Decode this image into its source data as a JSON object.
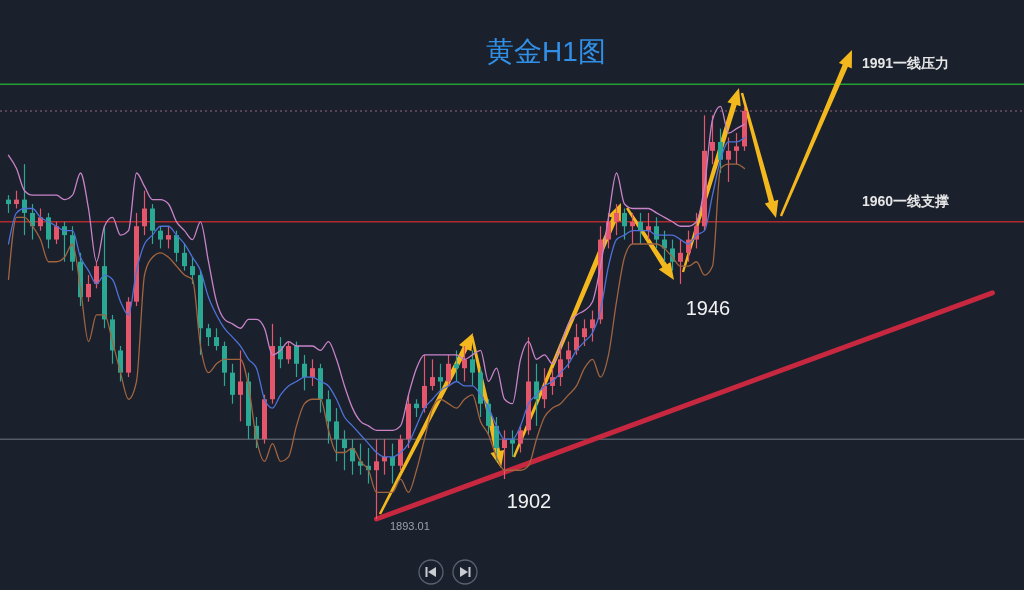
{
  "chart_data": {
    "type": "candlestick",
    "title": "黄金H1图",
    "categories": [
      null,
      null,
      null,
      null,
      null,
      null,
      null,
      null,
      null,
      null,
      null,
      null,
      null,
      null,
      null,
      null,
      null,
      null,
      null,
      null,
      null,
      null,
      null,
      null,
      null,
      null,
      null,
      null,
      null,
      null,
      null,
      null,
      null,
      null,
      null,
      null,
      null,
      null,
      null,
      null,
      null,
      null,
      null,
      null,
      null,
      null,
      null,
      null,
      null,
      null,
      null,
      null,
      null,
      null,
      null,
      null,
      null,
      null,
      null,
      null,
      null,
      null,
      null,
      null,
      null,
      null,
      null,
      null,
      null,
      null,
      null,
      null,
      null,
      null,
      null,
      null,
      null,
      null,
      null,
      null,
      null,
      null,
      null,
      null,
      null,
      null,
      null,
      null,
      null,
      null,
      null,
      null,
      null,
      null,
      null,
      null,
      null,
      null,
      null,
      null,
      null,
      null,
      null,
      null,
      null,
      null,
      null,
      null,
      null,
      null,
      null,
      null,
      null,
      null,
      null,
      null,
      null,
      null,
      null,
      null,
      null,
      null,
      null,
      null
    ],
    "ohlc": [
      [
        1965,
        1966,
        1962,
        1964
      ],
      [
        1964,
        1967,
        1963,
        1965
      ],
      [
        1965,
        1973,
        1957,
        1962
      ],
      [
        1962,
        1964,
        1956,
        1959
      ],
      [
        1959,
        1963,
        1958,
        1961
      ],
      [
        1961,
        1962,
        1954,
        1956
      ],
      [
        1956,
        1960,
        1955,
        1959
      ],
      [
        1959,
        1960,
        1951,
        1957
      ],
      [
        1957,
        1959,
        1949,
        1951
      ],
      [
        1951,
        1953,
        1941,
        1943
      ],
      [
        1943,
        1948,
        1942,
        1946
      ],
      [
        1946,
        1951,
        1945,
        1950
      ],
      [
        1950,
        1959,
        1936,
        1938
      ],
      [
        1938,
        1939,
        1928,
        1931
      ],
      [
        1931,
        1932,
        1924,
        1926
      ],
      [
        1926,
        1943,
        1925,
        1942
      ],
      [
        1942,
        1962,
        1941,
        1959
      ],
      [
        1959,
        1967,
        1957,
        1963
      ],
      [
        1963,
        1964,
        1955,
        1958
      ],
      [
        1958,
        1959,
        1954,
        1956
      ],
      [
        1956,
        1959,
        1954,
        1957
      ],
      [
        1957,
        1958,
        1951,
        1953
      ],
      [
        1953,
        1955,
        1949,
        1950
      ],
      [
        1950,
        1952,
        1946,
        1948
      ],
      [
        1948,
        1949,
        1930,
        1936
      ],
      [
        1936,
        1937,
        1932,
        1934
      ],
      [
        1934,
        1936,
        1931,
        1932
      ],
      [
        1932,
        1933,
        1923,
        1926
      ],
      [
        1926,
        1928,
        1919,
        1921
      ],
      [
        1921,
        1931,
        1915,
        1924
      ],
      [
        1924,
        1926,
        1911,
        1914
      ],
      [
        1914,
        1916,
        1909,
        1911
      ],
      [
        1911,
        1921,
        1910,
        1920
      ],
      [
        1920,
        1937,
        1919,
        1932
      ],
      [
        1932,
        1934,
        1927,
        1929
      ],
      [
        1929,
        1933,
        1928,
        1932
      ],
      [
        1932,
        1933,
        1925,
        1928
      ],
      [
        1928,
        1930,
        1922,
        1925
      ],
      [
        1925,
        1929,
        1923,
        1927
      ],
      [
        1927,
        1928,
        1917,
        1920
      ],
      [
        1920,
        1922,
        1910,
        1915
      ],
      [
        1915,
        1918,
        1906,
        1911
      ],
      [
        1911,
        1913,
        1904,
        1909
      ],
      [
        1909,
        1911,
        1903,
        1906
      ],
      [
        1906,
        1910,
        1903,
        1905
      ],
      [
        1905,
        1909,
        1901,
        1904
      ],
      [
        1904,
        1911,
        1893.01,
        1906
      ],
      [
        1906,
        1911,
        1903,
        1907
      ],
      [
        1907,
        1910,
        1901,
        1905
      ],
      [
        1905,
        1912,
        1904,
        1911
      ],
      [
        1911,
        1921,
        1909,
        1919
      ],
      [
        1919,
        1920,
        1916,
        1918
      ],
      [
        1918,
        1930,
        1917,
        1923
      ],
      [
        1923,
        1929,
        1922,
        1925
      ],
      [
        1925,
        1928,
        1922,
        1924
      ],
      [
        1924,
        1930,
        1923,
        1928
      ],
      [
        1928,
        1931,
        1924,
        1927
      ],
      [
        1927,
        1932,
        1924,
        1929
      ],
      [
        1929,
        1931,
        1923,
        1926
      ],
      [
        1926,
        1927,
        1916,
        1919
      ],
      [
        1919,
        1920,
        1912,
        1914
      ],
      [
        1914,
        1916,
        1906,
        1909
      ],
      [
        1909,
        1913,
        1902,
        1911
      ],
      [
        1911,
        1913,
        1907,
        1910
      ],
      [
        1910,
        1914,
        1908,
        1913
      ],
      [
        1913,
        1934,
        1912,
        1924
      ],
      [
        1924,
        1928,
        1914,
        1920
      ],
      [
        1920,
        1927,
        1918,
        1923
      ],
      [
        1923,
        1927,
        1921,
        1925
      ],
      [
        1925,
        1932,
        1923,
        1929
      ],
      [
        1929,
        1933,
        1927,
        1931
      ],
      [
        1931,
        1937,
        1930,
        1934
      ],
      [
        1934,
        1938,
        1932,
        1936
      ],
      [
        1936,
        1940,
        1933,
        1938
      ],
      [
        1938,
        1959,
        1937,
        1956
      ],
      [
        1956,
        1962,
        1954,
        1960
      ],
      [
        1960,
        1964,
        1957,
        1962
      ],
      [
        1962,
        1963,
        1956,
        1959
      ],
      [
        1959,
        1962,
        1955,
        1960
      ],
      [
        1960,
        1962,
        1955,
        1958
      ],
      [
        1958,
        1962,
        1956,
        1959
      ],
      [
        1959,
        1961,
        1954,
        1956
      ],
      [
        1956,
        1958,
        1951,
        1954
      ],
      [
        1954,
        1956,
        1949,
        1951
      ],
      [
        1951,
        1956,
        1946,
        1953
      ],
      [
        1953,
        1958,
        1951,
        1956
      ],
      [
        1956,
        1962,
        1954,
        1959
      ],
      [
        1959,
        1984,
        1958,
        1976
      ],
      [
        1976,
        1984,
        1973,
        1978
      ],
      [
        1978,
        1981,
        1971,
        1974
      ],
      [
        1974,
        1979,
        1969,
        1976
      ],
      [
        1976,
        1980,
        1973,
        1977
      ],
      [
        1977,
        1986,
        1976,
        1985
      ],
      null,
      null,
      null,
      null,
      null,
      null,
      null,
      null,
      null,
      null,
      null,
      null,
      null,
      null,
      null,
      null,
      null,
      null,
      null,
      null,
      null,
      null,
      null,
      null,
      null,
      null,
      null,
      null,
      null,
      null,
      null
    ],
    "colors": [
      "#2aa894",
      "#e3566c",
      "#2aa894",
      "#2aa894",
      "#e3566c",
      "#2aa894",
      "#e3566c",
      "#2aa894",
      "#2aa894",
      "#2aa894",
      "#e3566c",
      "#e3566c",
      "#2aa894",
      "#2aa894",
      "#2aa894",
      "#e3566c",
      "#e3566c",
      "#e3566c",
      "#2aa894",
      "#2aa894",
      "#e3566c",
      "#2aa894",
      "#2aa894",
      "#2aa894",
      "#2aa894",
      "#2aa894",
      "#2aa894",
      "#2aa894",
      "#2aa894",
      "#e3566c",
      "#2aa894",
      "#2aa894",
      "#e3566c",
      "#e3566c",
      "#2aa894",
      "#e3566c",
      "#2aa894",
      "#2aa894",
      "#e3566c",
      "#2aa894",
      "#2aa894",
      "#2aa894",
      "#2aa894",
      "#2aa894",
      "#2aa894",
      "#2aa894",
      "#e3566c",
      "#e3566c",
      "#2aa894",
      "#e3566c",
      "#e3566c",
      "#2aa894",
      "#e3566c",
      "#e3566c",
      "#2aa894",
      "#e3566c",
      "#2aa894",
      "#e3566c",
      "#2aa894",
      "#2aa894",
      "#2aa894",
      "#2aa894",
      "#e3566c",
      "#2aa894",
      "#e3566c",
      "#e3566c",
      "#2aa894",
      "#e3566c",
      "#e3566c",
      "#e3566c",
      "#e3566c",
      "#e3566c",
      "#e3566c",
      "#e3566c",
      "#e3566c",
      "#e3566c",
      "#e3566c",
      "#2aa894",
      "#e3566c",
      "#2aa894",
      "#e3566c",
      "#2aa894",
      "#2aa894",
      "#2aa894",
      "#e3566c",
      "#e3566c",
      "#e3566c",
      "#e3566c",
      "#e3566c",
      "#2aa894",
      "#e3566c",
      "#e3566c",
      "#e3566c",
      null,
      null,
      null,
      null,
      null,
      null,
      null,
      null,
      null,
      null,
      null,
      null,
      null,
      null,
      null,
      null,
      null,
      null,
      null,
      null,
      null,
      null,
      null,
      null,
      null,
      null,
      null,
      null,
      null,
      null,
      null
    ],
    "series": [
      {
        "type": "line",
        "color": "#c983c8",
        "values": [
          1975,
          1972,
          1967,
          1966,
          1966,
          1966,
          1966,
          1965,
          1966,
          1971,
          1963,
          1951,
          1959,
          1961,
          1957,
          1958,
          1971,
          1968,
          1965,
          1965,
          1964,
          1960,
          1958,
          1956,
          1960,
          1951,
          1942,
          1938,
          1937,
          1936,
          1938,
          1938,
          1936,
          1930,
          1931,
          1933,
          1932,
          1932,
          1932,
          1931,
          1933,
          1929,
          1923,
          1918,
          1915,
          1914,
          1913,
          1913,
          1913,
          1914,
          1921,
          1927,
          1930,
          1930,
          1930,
          1930,
          1930,
          1929,
          1930,
          1931,
          1924,
          1927,
          1920,
          1919,
          1929,
          1933,
          1929,
          1930,
          1928,
          1932,
          1937,
          1939,
          1940,
          1942,
          1950,
          1961,
          1971,
          1964,
          1963,
          1963,
          1963,
          1962,
          1961,
          1960,
          1959,
          1959,
          1960,
          1968,
          1983,
          1986,
          1980,
          1981,
          1982,
          null,
          null,
          null,
          null,
          null,
          null,
          null,
          null,
          null,
          null,
          null,
          null,
          null,
          null,
          null,
          null,
          null,
          null,
          null,
          null,
          null,
          null,
          null,
          null,
          null,
          null,
          null,
          null,
          null,
          null,
          null
        ]
      },
      {
        "type": "line",
        "color": "#4d72d8",
        "values": [
          1955,
          1962,
          1963,
          1963,
          1961,
          1960,
          1959,
          1958,
          1958,
          1952,
          1949,
          1946,
          1948,
          1947,
          1942,
          1939,
          1949,
          1955,
          1957,
          1959,
          1959,
          1957,
          1955,
          1952,
          1949,
          1943,
          1939,
          1936,
          1934,
          1932,
          1929,
          1927,
          1920,
          1918,
          1921,
          1923,
          1924,
          1925,
          1925,
          1924,
          1923,
          1920,
          1916,
          1914,
          1912,
          1910,
          1908,
          1907,
          1907,
          1908,
          1910,
          1914,
          1918,
          1920,
          1922,
          1923,
          1924,
          1923,
          1923,
          1921,
          1918,
          1914,
          1911,
          1911,
          1914,
          1919,
          1921,
          1923,
          1924,
          1926,
          1928,
          1931,
          1933,
          1935,
          1940,
          1950,
          1956,
          1957,
          1958,
          1958,
          1958,
          1957,
          1957,
          1957,
          1956,
          1955,
          1957,
          1958,
          1966,
          1974,
          1978,
          1978,
          1979,
          null,
          null,
          null,
          null,
          null,
          null,
          null,
          null,
          null,
          null,
          null,
          null,
          null,
          null,
          null,
          null,
          null,
          null,
          null,
          null,
          null,
          null,
          null,
          null,
          null,
          null,
          null,
          null,
          null,
          null,
          null
        ]
      },
      {
        "type": "line",
        "color": "#a0643f",
        "values": [
          1947,
          1961,
          1961,
          1959,
          1956,
          1951,
          1951,
          1952,
          1955,
          1945,
          1933,
          1939,
          1939,
          1933,
          1926,
          1920,
          1924,
          1948,
          1952,
          1953,
          1952,
          1950,
          1948,
          1947,
          1932,
          1926,
          1928,
          1929,
          1929,
          1929,
          1923,
          1911,
          1906,
          1910,
          1906,
          1907,
          1914,
          1919,
          1920,
          1920,
          1913,
          1908,
          1908,
          1909,
          1906,
          1904,
          1899,
          1899,
          1899,
          1902,
          1899,
          1904,
          1911,
          1918,
          1920,
          1919,
          1918,
          1920,
          1921,
          1915,
          1912,
          1907,
          1904,
          1904,
          1904,
          1905,
          1911,
          1916,
          1918,
          1919,
          1921,
          1923,
          1927,
          1929,
          1925,
          1930,
          1942,
          1952,
          1955,
          1955,
          1955,
          1955,
          1954,
          1952,
          1950,
          1950,
          1951,
          1948,
          1950,
          1972,
          1973,
          1973,
          1972,
          null,
          null,
          null,
          null,
          null,
          null,
          null,
          null,
          null,
          null,
          null,
          null,
          null,
          null,
          null,
          null,
          null,
          null,
          null,
          null,
          null,
          null,
          null,
          null,
          null,
          null,
          null,
          null,
          null,
          null,
          null
        ]
      },
      {
        "type": "line",
        "color": "#c8283f",
        "values": [
          null,
          null,
          null,
          null,
          null,
          null,
          null,
          null,
          null,
          null,
          null,
          null,
          null,
          null,
          null,
          null,
          null,
          null,
          null,
          null,
          null,
          null,
          null,
          null,
          null,
          null,
          null,
          null,
          null,
          null,
          null,
          null,
          null,
          null,
          null,
          null,
          null,
          null,
          null,
          null,
          null,
          null,
          null,
          null,
          null,
          null,
          1893,
          null,
          null,
          null,
          null,
          null,
          null,
          null,
          null,
          null,
          null,
          null,
          null,
          null,
          null,
          null,
          null,
          null,
          null,
          null,
          null,
          null,
          null,
          null,
          null,
          null,
          null,
          null,
          null,
          null,
          null,
          null,
          null,
          null,
          null,
          null,
          null,
          null,
          null,
          null,
          null,
          null,
          null,
          null,
          null,
          null,
          null,
          null,
          null,
          null,
          null,
          null,
          null,
          null,
          null,
          null,
          null,
          null,
          null,
          null,
          null,
          null,
          null,
          null,
          null,
          null,
          null,
          null,
          null,
          null,
          null,
          null,
          null,
          null,
          null,
          null,
          null,
          1944
        ]
      }
    ],
    "ylim": [
      1877,
      2010
    ],
    "tick_labels": false,
    "ref_lines": [
      {
        "axis": "y",
        "value": 1991,
        "label": "1991一线压力",
        "color": "#22a032"
      },
      {
        "axis": "y",
        "value": 1960,
        "label": "1960一线支撑",
        "color": "#b02a2e"
      },
      {
        "axis": "y",
        "value": 1985,
        "color": "#6c4f63",
        "line_style": "dotted"
      },
      {
        "axis": "y",
        "value": 1911,
        "color": "#555b66"
      }
    ],
    "annotations": [
      "1893.01",
      "1902",
      "1946"
    ]
  }
}
